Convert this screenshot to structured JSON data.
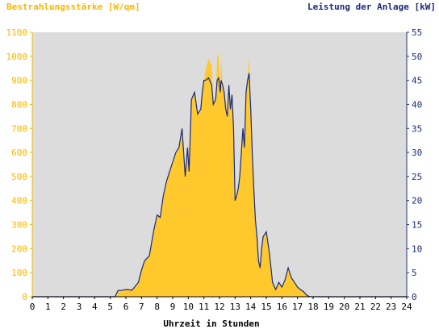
{
  "chart_data": {
    "type": "area",
    "title_left": "Bestrahlungsstärke [W/qm]",
    "title_right": "Leistung der Anlage [kW]",
    "xlabel": "Uhrzeit in Stunden",
    "xlim": [
      0,
      24
    ],
    "ylim_left": [
      0,
      1100
    ],
    "ylim_right": [
      0,
      55
    ],
    "x_ticks": [
      "0",
      "1",
      "2",
      "3",
      "4",
      "5",
      "6",
      "7",
      "8",
      "9",
      "10",
      "11",
      "12",
      "13",
      "14",
      "15",
      "16",
      "17",
      "18",
      "19",
      "20",
      "21",
      "22",
      "23",
      "24"
    ],
    "y_ticks_left": [
      "0",
      "100",
      "200",
      "300",
      "400",
      "500",
      "600",
      "700",
      "800",
      "900",
      "1000",
      "1100"
    ],
    "y_ticks_right": [
      "0",
      "5",
      "10",
      "15",
      "20",
      "25",
      "30",
      "35",
      "40",
      "45",
      "50",
      "55"
    ],
    "grid": false,
    "series": [
      {
        "name": "Bestrahlungsstärke [W/qm]",
        "axis": "left",
        "color": "#ffc92e",
        "x": [
          0,
          5.3,
          5.5,
          5.7,
          6.0,
          6.4,
          6.8,
          7.0,
          7.2,
          7.5,
          7.8,
          8.0,
          8.2,
          8.4,
          8.6,
          8.8,
          9.0,
          9.2,
          9.4,
          9.6,
          9.8,
          9.95,
          10.05,
          10.2,
          10.4,
          10.6,
          10.8,
          10.9,
          11.0,
          11.1,
          11.3,
          11.5,
          11.6,
          11.75,
          11.85,
          11.95,
          12.05,
          12.1,
          12.2,
          12.3,
          12.4,
          12.5,
          12.6,
          12.7,
          12.8,
          12.9,
          13.0,
          13.1,
          13.2,
          13.3,
          13.4,
          13.5,
          13.6,
          13.7,
          13.8,
          13.9,
          14.0,
          14.1,
          14.2,
          14.3,
          14.4,
          14.5,
          14.6,
          14.7,
          14.8,
          15.0,
          15.2,
          15.4,
          15.6,
          15.8,
          16.0,
          16.2,
          16.4,
          16.6,
          16.8,
          17.0,
          17.2,
          17.4,
          17.6,
          17.8,
          18.0,
          18.2,
          18.4,
          18.6,
          18.8,
          19.0,
          19.2,
          19.5,
          24
        ],
        "values": [
          0,
          0,
          25,
          25,
          30,
          28,
          60,
          110,
          150,
          170,
          280,
          340,
          330,
          420,
          480,
          520,
          560,
          600,
          620,
          700,
          500,
          620,
          520,
          820,
          850,
          760,
          780,
          850,
          900,
          940,
          990,
          960,
          800,
          820,
          1000,
          1010,
          850,
          990,
          880,
          850,
          780,
          750,
          880,
          780,
          840,
          700,
          400,
          420,
          450,
          500,
          600,
          700,
          620,
          850,
          900,
          1000,
          780,
          600,
          450,
          320,
          250,
          150,
          120,
          200,
          250,
          270,
          180,
          60,
          30,
          60,
          40,
          70,
          120,
          80,
          60,
          40,
          30,
          20,
          5,
          0,
          0,
          0,
          0,
          0,
          0,
          0,
          0,
          0,
          0
        ]
      },
      {
        "name": "Leistung der Anlage [kW]",
        "axis": "right",
        "color": "#1a2a7a",
        "x": [
          0,
          5.3,
          5.5,
          5.7,
          6.0,
          6.4,
          6.8,
          7.0,
          7.2,
          7.5,
          7.8,
          8.0,
          8.2,
          8.4,
          8.6,
          8.8,
          9.0,
          9.2,
          9.4,
          9.6,
          9.8,
          9.95,
          10.05,
          10.2,
          10.4,
          10.6,
          10.8,
          10.9,
          11.0,
          11.1,
          11.3,
          11.5,
          11.6,
          11.75,
          11.85,
          11.95,
          12.05,
          12.1,
          12.2,
          12.3,
          12.4,
          12.5,
          12.6,
          12.7,
          12.8,
          12.9,
          13.0,
          13.1,
          13.2,
          13.3,
          13.4,
          13.5,
          13.6,
          13.7,
          13.8,
          13.9,
          14.0,
          14.1,
          14.2,
          14.3,
          14.4,
          14.5,
          14.6,
          14.7,
          14.8,
          15.0,
          15.2,
          15.4,
          15.6,
          15.8,
          16.0,
          16.2,
          16.4,
          16.6,
          16.8,
          17.0,
          17.2,
          17.4,
          17.6,
          17.8,
          18.0,
          18.2,
          18.4,
          18.6,
          18.8,
          19.0,
          19.2,
          19.5,
          24
        ],
        "values": [
          0,
          0,
          1.3,
          1.3,
          1.5,
          1.4,
          3.0,
          5.5,
          7.5,
          8.5,
          14.0,
          17.0,
          16.5,
          21.0,
          24.0,
          26.0,
          28.0,
          30.0,
          31.0,
          35.0,
          25.0,
          31.0,
          26.0,
          41.0,
          42.5,
          38.0,
          39.0,
          42.5,
          45.0,
          45.0,
          45.5,
          44.0,
          40.0,
          41.0,
          45.0,
          45.5,
          42.5,
          45.0,
          44.0,
          42.5,
          39.0,
          37.5,
          44.0,
          39.0,
          42.0,
          35.0,
          20.0,
          21.0,
          22.5,
          25.0,
          30.0,
          35.0,
          31.0,
          42.5,
          45.0,
          46.5,
          39.0,
          30.0,
          22.5,
          16.0,
          12.5,
          7.5,
          6.0,
          10.0,
          12.5,
          13.5,
          9.0,
          3.0,
          1.5,
          3.0,
          2.0,
          3.5,
          6.0,
          4.0,
          3.0,
          2.0,
          1.5,
          1.0,
          0.3,
          0,
          0,
          0,
          0,
          0,
          0,
          0,
          0,
          0,
          0
        ]
      }
    ]
  }
}
